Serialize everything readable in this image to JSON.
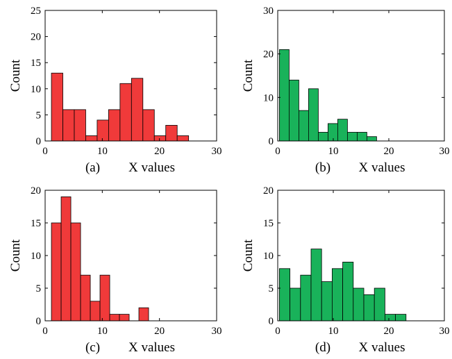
{
  "chart_data": [
    {
      "type": "histogram",
      "caption": "(a)",
      "xlabel": "X values",
      "ylabel": "Count",
      "color": "#f03a3a",
      "bins": [
        1.1,
        3.1,
        5.1,
        7.1,
        9.1,
        11.1,
        13.1,
        15.1,
        17.1,
        19.1,
        21.1,
        23.1,
        25.1
      ],
      "values": [
        13,
        6,
        6,
        1,
        4,
        6,
        11,
        12,
        6,
        1,
        3,
        1
      ],
      "xlim": [
        0,
        30
      ],
      "ylim": [
        0,
        25
      ],
      "xticks": [
        0,
        10,
        20,
        30
      ],
      "yticks": [
        0,
        5,
        10,
        15,
        20,
        25
      ]
    },
    {
      "type": "histogram",
      "caption": "(b)",
      "xlabel": "X values",
      "ylabel": "Count",
      "color": "#19b25a",
      "bins": [
        0.3,
        2.05,
        3.8,
        5.55,
        7.3,
        9.05,
        10.8,
        12.55,
        14.3,
        16.05,
        17.8
      ],
      "values": [
        21,
        14,
        7,
        12,
        2,
        4,
        5,
        2,
        2,
        1
      ],
      "xlim": [
        0,
        30
      ],
      "ylim": [
        0,
        30
      ],
      "xticks": [
        0,
        10,
        20,
        30
      ],
      "yticks": [
        0,
        10,
        20,
        30
      ]
    },
    {
      "type": "histogram",
      "caption": "(c)",
      "xlabel": "X values",
      "ylabel": "Count",
      "color": "#f03a3a",
      "bins": [
        1.1,
        2.8,
        4.5,
        6.2,
        7.9,
        9.6,
        11.3,
        13,
        14.7,
        16.4,
        18.1
      ],
      "values": [
        15,
        19,
        15,
        7,
        3,
        7,
        1,
        1,
        0,
        2
      ],
      "xlim": [
        0,
        30
      ],
      "ylim": [
        0,
        20
      ],
      "xticks": [
        0,
        10,
        20,
        30
      ],
      "yticks": [
        0,
        5,
        10,
        15,
        20
      ]
    },
    {
      "type": "histogram",
      "caption": "(d)",
      "xlabel": "X values",
      "ylabel": "Count",
      "color": "#19b25a",
      "bins": [
        0.3,
        2.2,
        4.1,
        6,
        7.9,
        9.8,
        11.7,
        13.6,
        15.5,
        17.4,
        19.3,
        21.2,
        23.1
      ],
      "values": [
        8,
        5,
        7,
        11,
        6,
        8,
        9,
        5,
        4,
        5,
        1,
        1
      ],
      "xlim": [
        0,
        30
      ],
      "ylim": [
        0,
        20
      ],
      "xticks": [
        0,
        10,
        20,
        30
      ],
      "yticks": [
        0,
        5,
        10,
        15,
        20
      ]
    }
  ]
}
